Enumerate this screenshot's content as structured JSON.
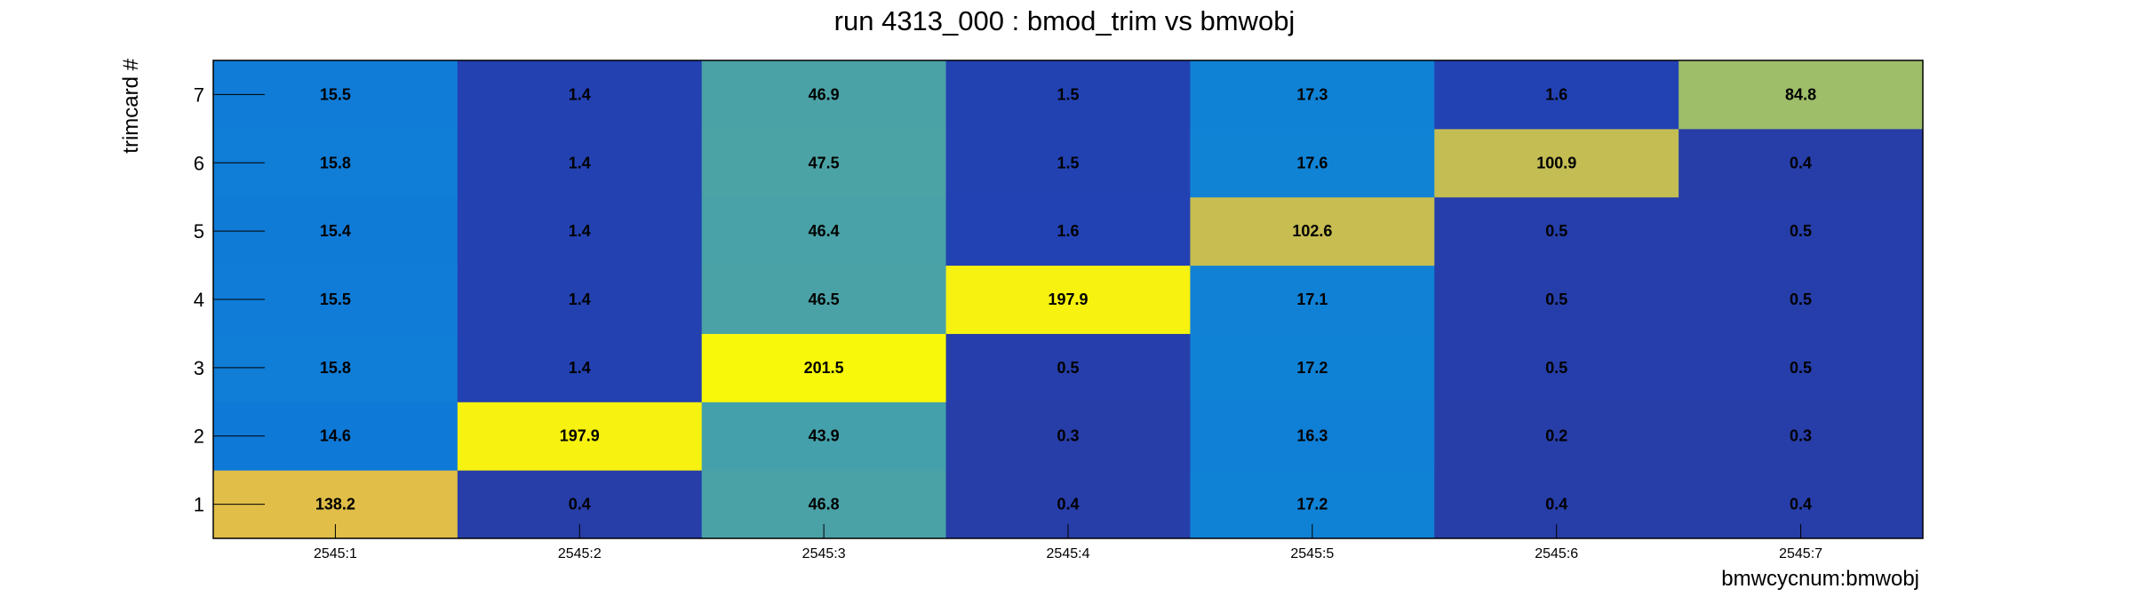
{
  "title": "run 4313_000 : bmod_trim vs bmwobj",
  "chart_data": {
    "type": "heatmap",
    "title": "run 4313_000 : bmod_trim vs bmwobj",
    "xlabel": "bmwcycnum:bmwobj",
    "ylabel": "trimcard #",
    "x_categories": [
      "2545:1",
      "2545:2",
      "2545:3",
      "2545:4",
      "2545:5",
      "2545:6",
      "2545:7"
    ],
    "y_categories": [
      "1",
      "2",
      "3",
      "4",
      "5",
      "6",
      "7"
    ],
    "values": [
      [
        138.2,
        14.6,
        15.8,
        15.5,
        15.4,
        15.8,
        15.5
      ],
      [
        0.4,
        197.9,
        1.4,
        1.4,
        1.4,
        1.4,
        1.4
      ],
      [
        46.8,
        43.9,
        201.5,
        46.5,
        46.4,
        47.5,
        46.9
      ],
      [
        0.4,
        0.3,
        0.5,
        197.9,
        1.6,
        1.5,
        1.5
      ],
      [
        17.2,
        16.3,
        17.2,
        17.1,
        102.6,
        17.6,
        17.3
      ],
      [
        0.4,
        0.2,
        0.5,
        0.5,
        0.5,
        100.9,
        1.6
      ],
      [
        0.4,
        0.3,
        0.5,
        0.5,
        0.5,
        0.4,
        84.8
      ]
    ],
    "value_labels": [
      [
        "138.2",
        "14.6",
        "15.8",
        "15.5",
        "15.4",
        "15.8",
        "15.5"
      ],
      [
        "0.4",
        "197.9",
        "1.4",
        "1.4",
        "1.4",
        "1.4",
        "1.4"
      ],
      [
        "46.8",
        "43.9",
        "201.5",
        "46.5",
        "46.4",
        "47.5",
        "46.9"
      ],
      [
        "0.4",
        "0.3",
        "0.5",
        "197.9",
        "1.6",
        "1.5",
        "1.5"
      ],
      [
        "17.2",
        "16.3",
        "17.2",
        "17.1",
        "102.6",
        "17.6",
        "17.3"
      ],
      [
        "0.4",
        "0.2",
        "0.5",
        "0.5",
        "0.5",
        "100.9",
        "1.6"
      ],
      [
        "0.4",
        "0.3",
        "0.5",
        "0.5",
        "0.5",
        "0.4",
        "84.8"
      ]
    ],
    "colorscale": "parula",
    "zmax": 201.5
  }
}
